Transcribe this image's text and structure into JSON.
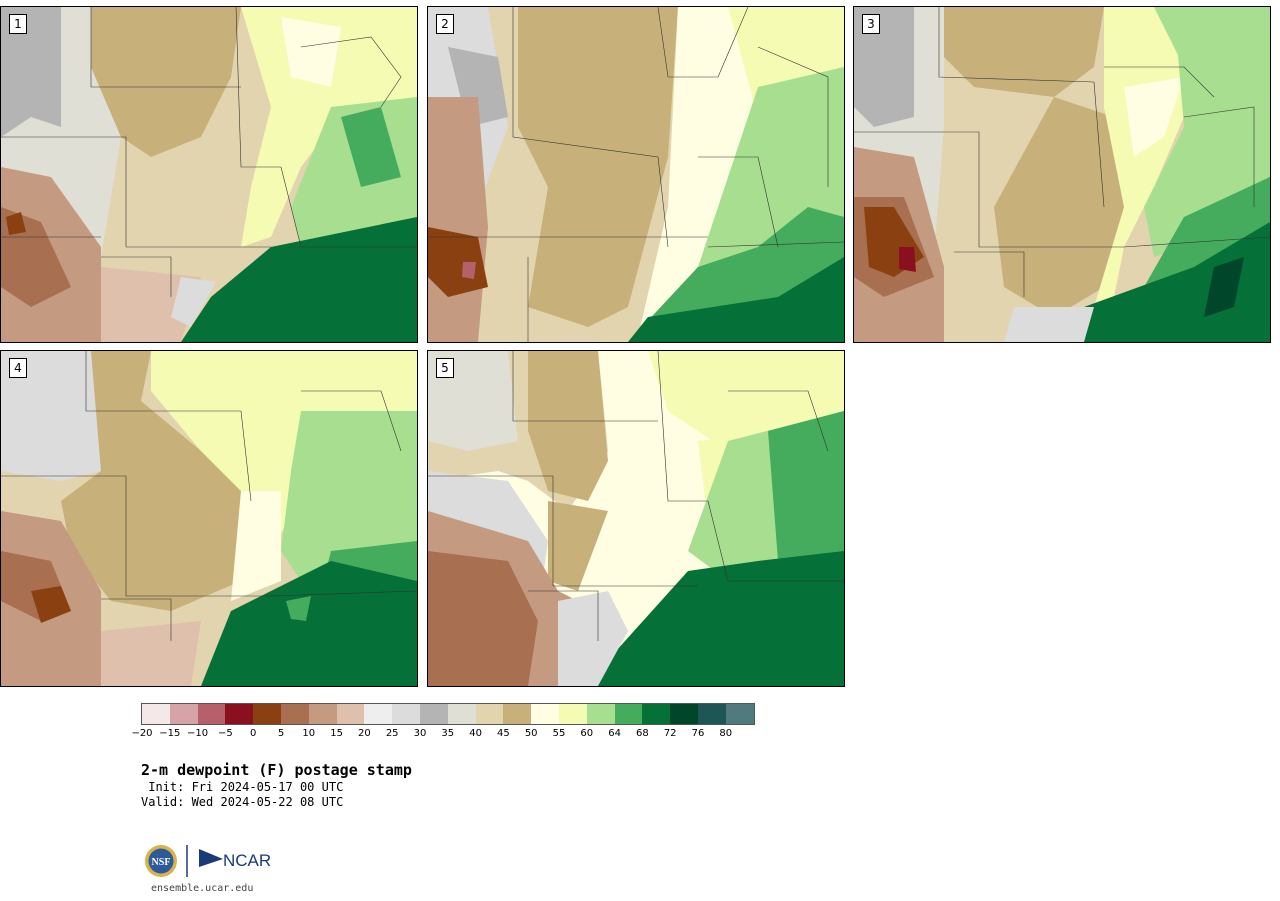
{
  "panels": [
    {
      "label": "1"
    },
    {
      "label": "2"
    },
    {
      "label": "3"
    },
    {
      "label": "4"
    },
    {
      "label": "5"
    }
  ],
  "colorbar": {
    "colors": [
      "#f4e8e8",
      "#d6a3a8",
      "#b5606a",
      "#8a1020",
      "#8a4010",
      "#a87050",
      "#c49a80",
      "#dfc0ac",
      "#eeeeee",
      "#dcdcdc",
      "#b4b4b4",
      "#e0dfd5",
      "#e2d4ae",
      "#c8b07a",
      "#fffde2",
      "#f6fbb4",
      "#a8de90",
      "#44ac5c",
      "#057038",
      "#00462a",
      "#1e5555",
      "#507a7e"
    ],
    "tick_labels": [
      "−20",
      "−15",
      "−10",
      "−5",
      "0",
      "5",
      "10",
      "15",
      "20",
      "25",
      "30",
      "35",
      "40",
      "45",
      "50",
      "55",
      "60",
      "64",
      "68",
      "72",
      "76",
      "80"
    ]
  },
  "title": "2-m dewpoint (F) postage stamp",
  "init": " Init: Fri 2024-05-17 00 UTC",
  "valid": "Valid: Wed 2024-05-22 08 UTC",
  "logos": {
    "nsf": "NSF",
    "ncar": "NCAR"
  },
  "website": "ensemble.ucar.edu"
}
